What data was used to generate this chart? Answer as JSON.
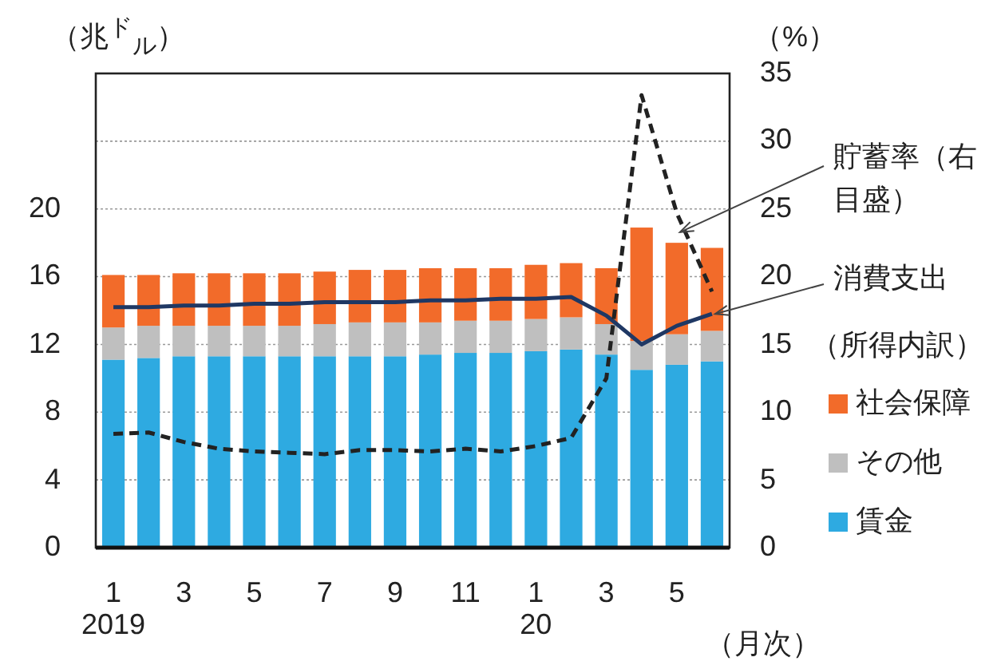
{
  "chart_data": {
    "type": "bar",
    "stacked": true,
    "categories": [
      "1\n2019",
      null,
      "3",
      null,
      "5",
      null,
      "7",
      null,
      "9",
      null,
      "11",
      null,
      "1\n20",
      null,
      "3",
      null,
      "5",
      null
    ],
    "xlabel": "（月次）",
    "ylabel": "（兆$^{ド}$$_{ル}$）",
    "y2label": "（%）",
    "legend_title": "（所得内訳）",
    "ylim": [
      0,
      28
    ],
    "yticks": [
      0,
      4,
      8,
      12,
      16,
      20,
      {
        "value": 24,
        "label": null
      }
    ],
    "y2lim": [
      0,
      35
    ],
    "y2ticks": [
      0,
      5,
      10,
      15,
      20,
      25,
      30,
      35
    ],
    "grid": "y",
    "legend": "right",
    "series": [
      {
        "name": "賃金",
        "color": "#2eaae1",
        "values": [
          11.1,
          11.2,
          11.3,
          11.3,
          11.3,
          11.3,
          11.3,
          11.3,
          11.3,
          11.4,
          11.5,
          11.5,
          11.6,
          11.7,
          11.4,
          10.5,
          10.8,
          11.0
        ]
      },
      {
        "name": "その他",
        "color": "#bfbfbf",
        "values": [
          1.9,
          1.9,
          1.8,
          1.8,
          1.8,
          1.8,
          1.9,
          2.0,
          2.0,
          1.9,
          1.9,
          1.9,
          1.9,
          1.9,
          1.8,
          1.7,
          1.8,
          1.8
        ]
      },
      {
        "name": "社会保障",
        "color": "#f26b2a",
        "values": [
          3.1,
          3.0,
          3.1,
          3.1,
          3.1,
          3.1,
          3.1,
          3.1,
          3.1,
          3.2,
          3.1,
          3.1,
          3.2,
          3.2,
          3.3,
          6.7,
          5.4,
          4.9
        ]
      },
      {
        "name": "消費支出",
        "type": "line",
        "color": "#1f3864",
        "line_style": "solid",
        "values": [
          14.2,
          14.2,
          14.3,
          14.3,
          14.4,
          14.4,
          14.5,
          14.5,
          14.5,
          14.6,
          14.6,
          14.7,
          14.7,
          14.8,
          13.7,
          12.0,
          13.1,
          13.8
        ]
      },
      {
        "name": "貯蓄率（右目盛）",
        "type": "line",
        "axis": "y2",
        "color": "#222222",
        "line_style": "dashed",
        "values": [
          8.4,
          8.5,
          7.8,
          7.3,
          7.1,
          7.0,
          6.9,
          7.2,
          7.2,
          7.1,
          7.3,
          7.1,
          7.5,
          8.1,
          12.5,
          33.4,
          24.7,
          18.9
        ]
      }
    ]
  }
}
